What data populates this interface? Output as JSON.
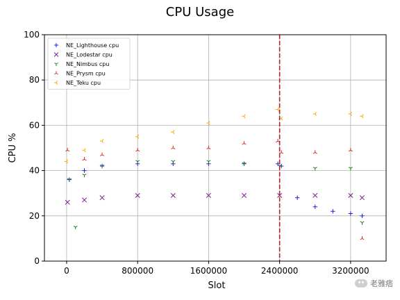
{
  "chart_data": {
    "type": "scatter",
    "title": "CPU Usage",
    "xlabel": "Slot",
    "ylabel": "CPU %",
    "xlim": [
      -250000,
      3600000
    ],
    "ylim": [
      0,
      100
    ],
    "xticks": [
      0,
      800000,
      1600000,
      2400000,
      3200000
    ],
    "xtick_labels": [
      "0",
      "800000",
      "1600000",
      "2400000",
      "3200000"
    ],
    "yticks": [
      0,
      20,
      40,
      60,
      80,
      100
    ],
    "ytick_labels": [
      "0",
      "20",
      "40",
      "60",
      "80",
      "100"
    ],
    "grid": true,
    "legend_position": "upper-left",
    "vline": {
      "x": 2400000,
      "color": "#b22222",
      "style": "dashed"
    },
    "series": [
      {
        "name": "NE_Lighthouse cpu",
        "color": "#1f1fdd",
        "marker": "plus",
        "x": [
          30000,
          200000,
          400000,
          800000,
          1200000,
          1600000,
          2000000,
          2380000,
          2420000,
          2600000,
          2800000,
          3000000,
          3200000,
          3330000
        ],
        "y": [
          36,
          40,
          42,
          43,
          43,
          43,
          43,
          43,
          42,
          28,
          24,
          22,
          21,
          20
        ]
      },
      {
        "name": "NE_Lodestar cpu",
        "color": "#7f1f8f",
        "marker": "x",
        "x": [
          10000,
          200000,
          400000,
          800000,
          1200000,
          1600000,
          2000000,
          2400000,
          2800000,
          3200000,
          3330000
        ],
        "y": [
          26,
          27,
          28,
          29,
          29,
          29,
          29,
          29,
          29,
          29,
          28
        ]
      },
      {
        "name": "NE_Nimbus cpu",
        "color": "#1a7a1a",
        "marker": "tri_down",
        "x": [
          30000,
          100000,
          200000,
          400000,
          800000,
          1200000,
          1600000,
          2000000,
          2400000,
          2800000,
          3200000,
          3330000
        ],
        "y": [
          36,
          15,
          38,
          42,
          44,
          44,
          44,
          43,
          42,
          41,
          41,
          17
        ]
      },
      {
        "name": "NE_Prysm cpu",
        "color": "#d42a1e",
        "marker": "tri_up",
        "x": [
          10000,
          200000,
          400000,
          800000,
          1200000,
          1600000,
          2000000,
          2380000,
          2420000,
          2800000,
          3200000,
          3330000
        ],
        "y": [
          49,
          45,
          47,
          49,
          50,
          50,
          52,
          53,
          48,
          48,
          49,
          10
        ]
      },
      {
        "name": "NE_Teku cpu",
        "color": "#ffa500",
        "marker": "tri_left",
        "x": [
          0,
          200000,
          400000,
          800000,
          1200000,
          1600000,
          2000000,
          2380000,
          2420000,
          2800000,
          3200000,
          3330000
        ],
        "y": [
          44,
          49,
          53,
          55,
          57,
          61,
          64,
          67,
          63,
          65,
          65,
          64
        ]
      }
    ]
  },
  "watermark": {
    "text": "老雅痞"
  }
}
